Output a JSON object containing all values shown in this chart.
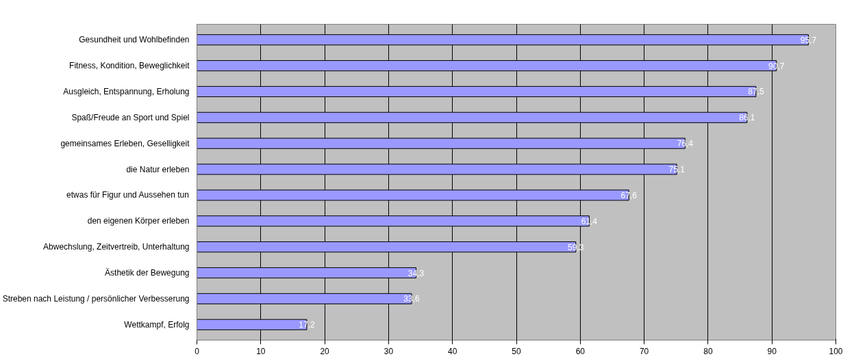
{
  "chart_data": {
    "type": "bar",
    "orientation": "horizontal",
    "categories": [
      "Gesundheit und Wohlbefinden",
      "Fitness, Kondition, Beweglichkeit",
      "Ausgleich, Entspannung, Erholung",
      "Spaß/Freude an Sport und Spiel",
      "gemeinsames Erleben, Geselligkeit",
      "die Natur erleben",
      "etwas für Figur und Aussehen tun",
      "den eigenen Körper erleben",
      "Abwechslung, Zeitvertreib, Unterhaltung",
      "Ästhetik der Bewegung",
      "Streben nach Leistung / persönlicher Verbesserung",
      "Wettkampf, Erfolg"
    ],
    "values": [
      95.7,
      90.7,
      87.5,
      86.1,
      76.4,
      75.1,
      67.6,
      61.4,
      59.3,
      34.3,
      33.6,
      17.2
    ],
    "color": "#9999ff",
    "xlim": [
      0,
      100
    ],
    "xticks": [
      0,
      10,
      20,
      30,
      40,
      50,
      60,
      70,
      80,
      90,
      100
    ],
    "value_labels": [
      "95,7",
      "90,7",
      "87,5",
      "86,1",
      "76,4",
      "75,1",
      "67,6",
      "61,4",
      "59,3",
      "34,3",
      "33,6",
      "17,2"
    ],
    "grid": "x"
  }
}
